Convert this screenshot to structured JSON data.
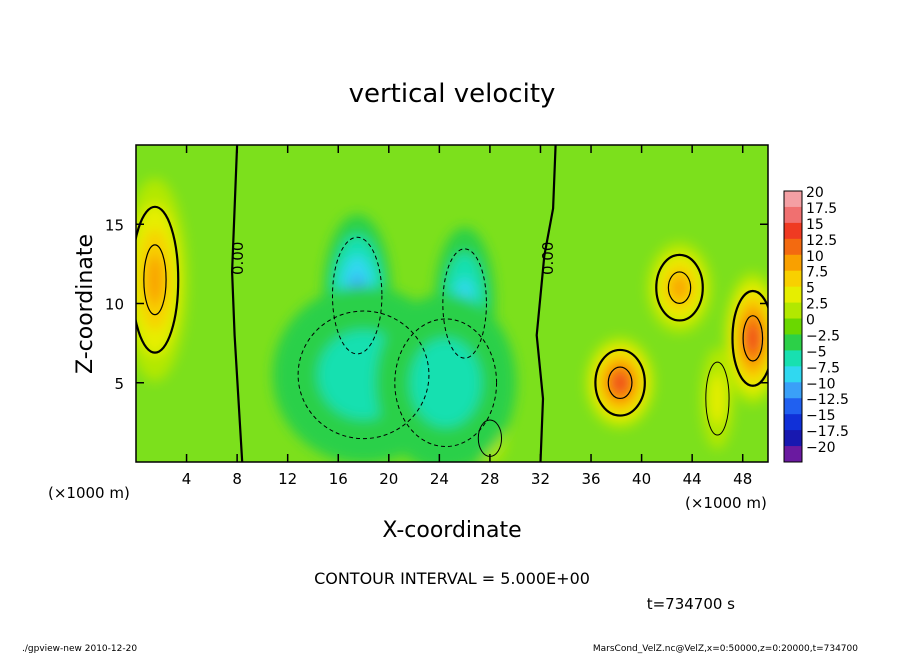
{
  "chart_data": {
    "type": "heatmap",
    "title": "vertical velocity",
    "xlabel": "X-coordinate",
    "ylabel": "Z-coordinate",
    "x_unit": "(×1000 m)",
    "xlim": [
      0,
      50
    ],
    "ylim": [
      0,
      20
    ],
    "xticks": [
      4,
      8,
      12,
      16,
      20,
      24,
      28,
      32,
      36,
      40,
      44,
      48
    ],
    "yticks": [
      5,
      10,
      15
    ],
    "zero_contour_label": "0.00",
    "contour_interval_text": "CONTOUR INTERVAL = 5.000E+00",
    "time_text": "t=734700 s",
    "footer_left": "./gpview-new  2010-12-20",
    "footer_right": "MarsCond_VelZ.nc@VelZ,x=0:50000,z=0:20000,t=734700",
    "colorbar": {
      "levels": [
        "20",
        "17.5",
        "15",
        "12.5",
        "10",
        "7.5",
        "5",
        "2.5",
        "0",
        "-2.5",
        "-5",
        "-7.5",
        "-10",
        "-12.5",
        "-15",
        "-17.5",
        "-20"
      ],
      "colors": [
        "#f4a0a4",
        "#f07070",
        "#ef3a22",
        "#f36a10",
        "#f9a000",
        "#f8d000",
        "#e6ee00",
        "#b2e800",
        "#6ad800",
        "#2cd048",
        "#18e0b0",
        "#30d8f0",
        "#3aa0f8",
        "#2060f0",
        "#1030d8",
        "#1818b0",
        "#6a1aa0"
      ]
    },
    "background_color": "#7ce01c",
    "features": [
      {
        "kind": "updraft",
        "x": 1.5,
        "z": 11.5,
        "sx": 1.6,
        "sz": 4.0,
        "w": 11
      },
      {
        "kind": "updraft",
        "x": 38.3,
        "z": 5.0,
        "sx": 1.7,
        "sz": 1.8,
        "w": 14
      },
      {
        "kind": "updraft",
        "x": 43.0,
        "z": 11.0,
        "sx": 1.6,
        "sz": 1.8,
        "w": 10
      },
      {
        "kind": "updraft",
        "x": 48.8,
        "z": 7.8,
        "sx": 1.4,
        "sz": 2.6,
        "w": 14
      },
      {
        "kind": "updraft",
        "x": 46.0,
        "z": 4.0,
        "sx": 0.8,
        "sz": 2.0,
        "w": 4
      },
      {
        "kind": "updraft",
        "x": 28.0,
        "z": 1.5,
        "sx": 0.8,
        "sz": 1.0,
        "w": 5
      },
      {
        "kind": "downdraft",
        "x": 17.5,
        "z": 10.5,
        "sx": 1.7,
        "sz": 3.2,
        "w": -9
      },
      {
        "kind": "downdraft",
        "x": 26.0,
        "z": 10.0,
        "sx": 1.5,
        "sz": 3.0,
        "w": -8
      },
      {
        "kind": "downdraft",
        "x": 18.0,
        "z": 5.5,
        "sx": 4.5,
        "sz": 3.5,
        "w": -5
      },
      {
        "kind": "downdraft",
        "x": 24.5,
        "z": 5.0,
        "sx": 3.5,
        "sz": 3.5,
        "w": -5
      }
    ]
  }
}
